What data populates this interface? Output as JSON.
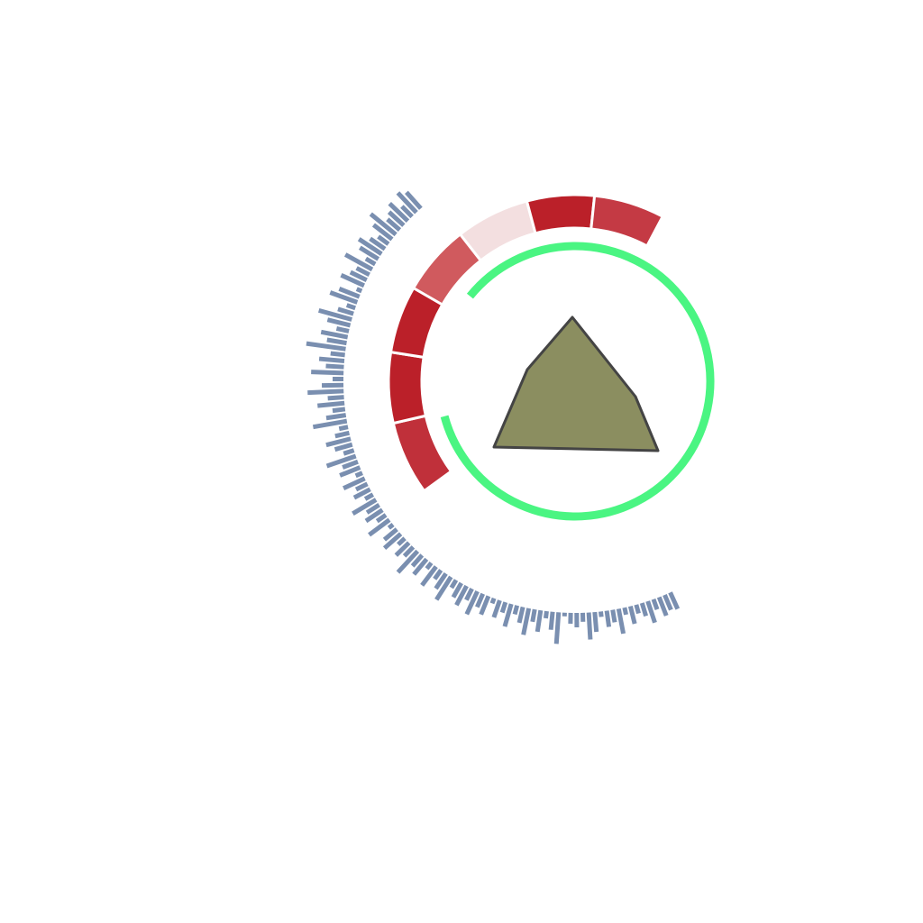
{
  "chart_data": {
    "type": "circular",
    "arc": {
      "color": "#4af582",
      "start": 309,
      "end": 615
    },
    "segments": {
      "start": 234,
      "values": [
        23,
        22,
        21,
        22,
        23,
        21,
        22
      ],
      "colors": [
        "#c0303a",
        "#bb2029",
        "#bb2029",
        "#d05a5e",
        "#f3dfe0",
        "#bb2029",
        "#c43a44"
      ]
    },
    "bars": {
      "color": "#7a8fb0",
      "start": 155,
      "end": 319,
      "rlim": [
        0,
        50
      ],
      "values": [
        20,
        18,
        22,
        12,
        25,
        15,
        10,
        20,
        8,
        28,
        14,
        18,
        6,
        22,
        30,
        10,
        16,
        12,
        4,
        35,
        20,
        8,
        24,
        14,
        30,
        18,
        10,
        26,
        12,
        20,
        6,
        22,
        16,
        28,
        14,
        24,
        18,
        10,
        30,
        20,
        12,
        26,
        8,
        22,
        16,
        32,
        14,
        20,
        10,
        24,
        18,
        6,
        28,
        12,
        22,
        16,
        30,
        10,
        20,
        14,
        26,
        8,
        24,
        18,
        34,
        12,
        20,
        28,
        16,
        10,
        38,
        22,
        14,
        30,
        18,
        40,
        24,
        12,
        36,
        20,
        28,
        16,
        44,
        22,
        30,
        14,
        26,
        38,
        18,
        10,
        32,
        24,
        6,
        28,
        20,
        16,
        34,
        12,
        24,
        30,
        20,
        14,
        26,
        36,
        18,
        22,
        28,
        16,
        30,
        24
      ]
    }
  }
}
